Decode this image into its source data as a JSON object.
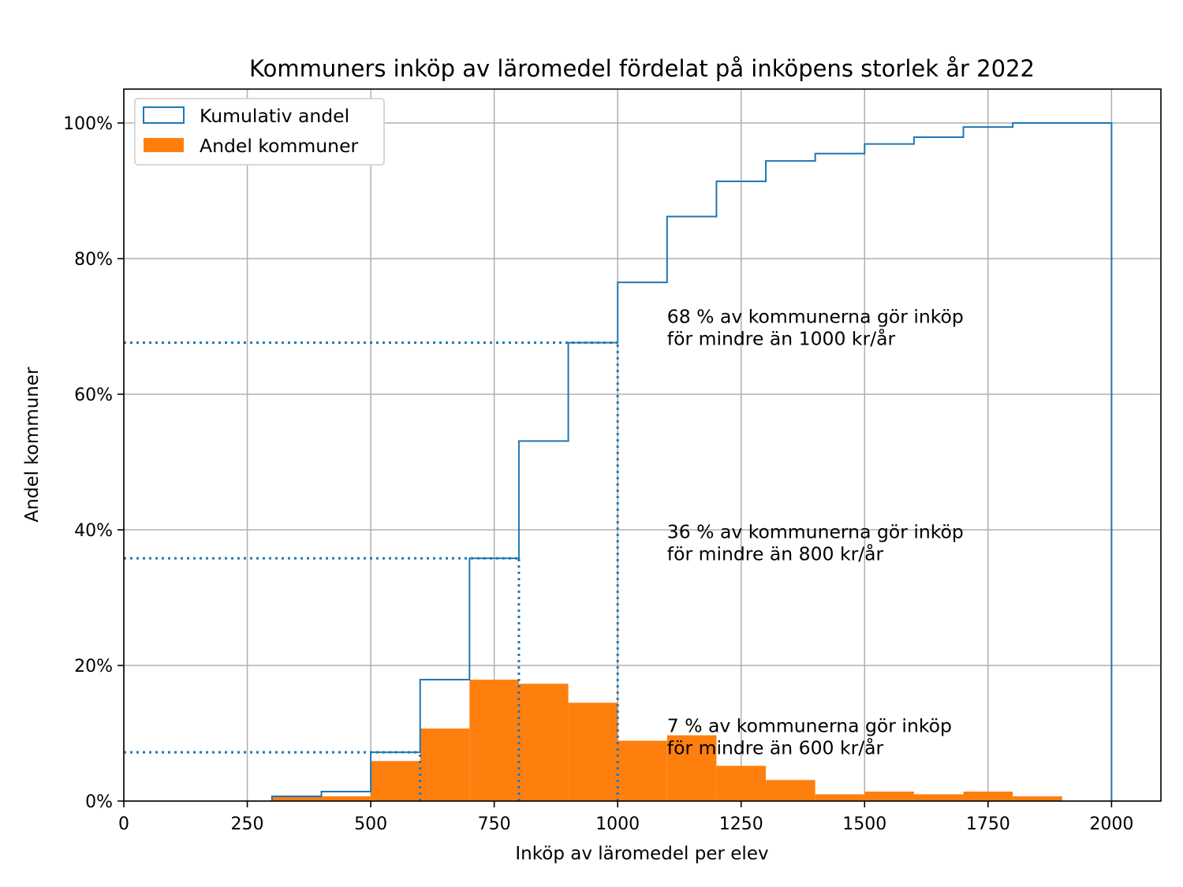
{
  "chart_data": {
    "type": "bar",
    "title": "Kommuners inköp av läromedel fördelat på inköpens storlek år 2022",
    "xlabel": "Inköp av läromedel per elev",
    "ylabel": "Andel kommuner",
    "xlim": [
      0,
      2100
    ],
    "ylim": [
      0,
      105
    ],
    "x_ticks": [
      0,
      250,
      500,
      750,
      1000,
      1250,
      1500,
      1750,
      2000
    ],
    "y_ticks": [
      0,
      20,
      40,
      60,
      80,
      100
    ],
    "y_tick_labels": [
      "0%",
      "20%",
      "40%",
      "60%",
      "80%",
      "100%"
    ],
    "grid": true,
    "legend_position": "top-left",
    "bin_edges": [
      300,
      400,
      500,
      600,
      700,
      800,
      900,
      1000,
      1100,
      1200,
      1300,
      1400,
      1500,
      1600,
      1700,
      1800,
      1900,
      2000
    ],
    "series": [
      {
        "name": "Kumulativ andel",
        "kind": "step",
        "color": "#1f77b4",
        "values": [
          0.7,
          1.4,
          7.2,
          17.9,
          35.8,
          53.1,
          67.6,
          76.5,
          86.2,
          91.4,
          94.4,
          95.5,
          96.9,
          97.9,
          99.4,
          100,
          100
        ]
      },
      {
        "name": "Andel kommuner",
        "kind": "bar",
        "color": "#ff7f0e",
        "values": [
          0.7,
          0.7,
          5.9,
          10.7,
          17.9,
          17.3,
          14.5,
          8.9,
          9.7,
          5.2,
          3.1,
          1.0,
          1.4,
          1.0,
          1.4,
          0.7,
          0
        ]
      }
    ],
    "reference_lines": [
      {
        "x": 600,
        "y": 7.2
      },
      {
        "x": 800,
        "y": 35.8
      },
      {
        "x": 1000,
        "y": 67.6
      }
    ],
    "annotations": [
      {
        "x": 1100,
        "y": 70.5,
        "lines": [
          "68 % av kommunerna gör inköp",
          "för mindre än 1000 kr/år"
        ]
      },
      {
        "x": 1100,
        "y": 38.8,
        "lines": [
          "36 % av kommunerna gör inköp",
          "för mindre än 800 kr/år"
        ]
      },
      {
        "x": 1100,
        "y": 10.2,
        "lines": [
          "7 % av kommunerna gör inköp",
          "för mindre än 600 kr/år"
        ]
      }
    ]
  }
}
